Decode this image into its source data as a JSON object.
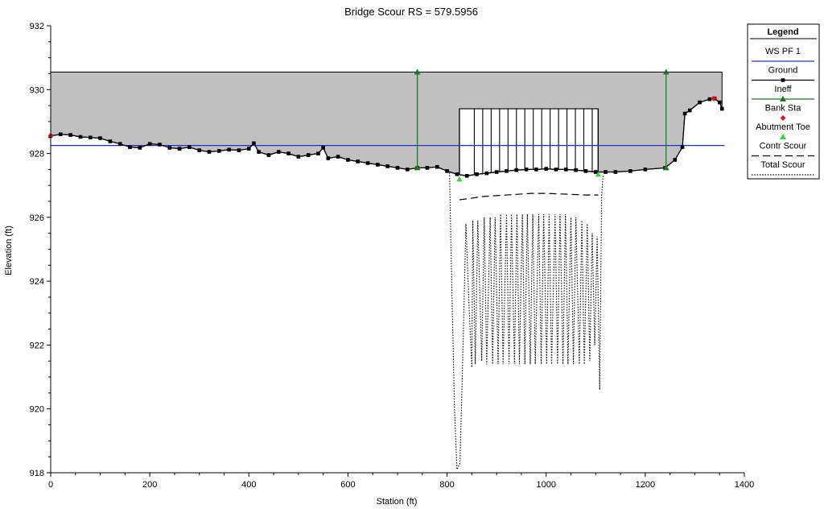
{
  "chart_data": {
    "type": "line",
    "title": "Bridge Scour RS = 579.5956",
    "xlabel": "Station (ft)",
    "ylabel": "Elevation (ft)",
    "xlim": [
      0,
      1400
    ],
    "ylim": [
      918,
      932
    ],
    "x_ticks": [
      0,
      200,
      400,
      600,
      800,
      1000,
      1200,
      1400
    ],
    "y_ticks": [
      918,
      920,
      922,
      924,
      926,
      928,
      930,
      932
    ],
    "grid": false,
    "legend_position": "top-right",
    "legend_title": "Legend",
    "legend": [
      "WS PF 1",
      "Ground",
      "Ineff",
      "Bank Sta",
      "Abutment Toe",
      "Contr Scour",
      "Total Scour"
    ],
    "colors": {
      "ws": "#1f2fd0",
      "ground": "#000000",
      "ineff": "#1e7a1e",
      "bank": "#e01818",
      "abutment": "#36d836",
      "fill": "#c0c0c0",
      "scour": "#000000"
    },
    "series": [
      {
        "name": "WS PF 1",
        "x": [
          0,
          1360
        ],
        "y": [
          928.25,
          928.25
        ]
      },
      {
        "name": "Ground",
        "x": [
          0,
          20,
          40,
          60,
          80,
          100,
          120,
          140,
          160,
          180,
          200,
          220,
          240,
          260,
          280,
          300,
          320,
          340,
          360,
          380,
          400,
          410,
          420,
          440,
          460,
          480,
          500,
          520,
          540,
          550,
          560,
          580,
          600,
          620,
          640,
          660,
          680,
          700,
          720,
          740,
          760,
          780,
          800,
          820,
          840,
          860,
          880,
          900,
          920,
          940,
          960,
          980,
          1000,
          1020,
          1040,
          1060,
          1080,
          1100,
          1120,
          1140,
          1170,
          1200,
          1240,
          1260,
          1275,
          1280,
          1290,
          1310,
          1330,
          1340,
          1350,
          1355
        ],
        "y": [
          928.55,
          928.6,
          928.58,
          928.52,
          928.5,
          928.48,
          928.38,
          928.3,
          928.2,
          928.18,
          928.3,
          928.28,
          928.18,
          928.15,
          928.2,
          928.1,
          928.05,
          928.08,
          928.12,
          928.1,
          928.15,
          928.32,
          928.05,
          927.95,
          928.05,
          928.0,
          927.9,
          927.95,
          928.0,
          928.18,
          927.85,
          927.9,
          927.8,
          927.75,
          927.7,
          927.65,
          927.6,
          927.55,
          927.5,
          927.55,
          927.55,
          927.58,
          927.45,
          927.35,
          927.3,
          927.35,
          927.38,
          927.42,
          927.45,
          927.48,
          927.5,
          927.5,
          927.52,
          927.5,
          927.5,
          927.48,
          927.45,
          927.42,
          927.42,
          927.42,
          927.45,
          927.5,
          927.55,
          927.8,
          928.2,
          929.25,
          929.35,
          929.6,
          929.7,
          929.72,
          929.6,
          929.4
        ]
      },
      {
        "name": "Ineff",
        "x": [
          740,
          740,
          1242,
          1242
        ],
        "y": [
          927.55,
          930.55,
          927.55,
          930.55
        ]
      },
      {
        "name": "Bank Sta",
        "x": [
          0,
          1338
        ],
        "y": [
          928.55,
          929.72
        ]
      },
      {
        "name": "Abutment Toe",
        "x": [
          825,
          1105
        ],
        "y": [
          927.2,
          927.35
        ]
      },
      {
        "name": "Contr Scour",
        "x": [
          825,
          850,
          870,
          900,
          940,
          970,
          1000,
          1050,
          1080,
          1105
        ],
        "y": [
          926.55,
          926.6,
          926.65,
          926.68,
          926.72,
          926.75,
          926.75,
          926.72,
          926.7,
          926.7
        ]
      },
      {
        "name": "Total Scour",
        "x": [
          805,
          808,
          815,
          820,
          826,
          832,
          838,
          845,
          850,
          852,
          857,
          862,
          870,
          875,
          880,
          887,
          892,
          897,
          903,
          908,
          913,
          920,
          925,
          930,
          936,
          941,
          946,
          952,
          957,
          962,
          968,
          973,
          978,
          985,
          990,
          995,
          1001,
          1006,
          1011,
          1018,
          1023,
          1028,
          1034,
          1039,
          1044,
          1050,
          1055,
          1060,
          1067,
          1072,
          1077,
          1083,
          1088,
          1093,
          1098,
          1103,
          1108,
          1112,
          1115
        ],
        "y": [
          927.4,
          925.0,
          920.0,
          918.1,
          918.3,
          921.8,
          925.8,
          923.0,
          921.3,
          925.9,
          921.4,
          925.9,
          921.5,
          926.0,
          921.4,
          926.0,
          921.4,
          926.0,
          921.4,
          926.1,
          921.4,
          926.1,
          921.4,
          926.1,
          921.4,
          926.1,
          921.4,
          926.1,
          921.4,
          926.1,
          921.4,
          926.1,
          921.4,
          926.1,
          921.4,
          926.1,
          921.4,
          926.1,
          921.4,
          926.1,
          921.4,
          926.1,
          921.4,
          926.1,
          921.4,
          926.0,
          921.4,
          926.0,
          921.4,
          925.9,
          921.4,
          925.8,
          921.5,
          925.5,
          922.0,
          925.4,
          920.6,
          926.7,
          927.35
        ]
      }
    ],
    "bridge": {
      "left_station": 825,
      "right_station": 1105,
      "deck_top": 929.4,
      "pier_stations": [
        855,
        872,
        889,
        906,
        923,
        940,
        957,
        974,
        991,
        1008,
        1025,
        1042,
        1059,
        1076,
        1093
      ]
    }
  }
}
